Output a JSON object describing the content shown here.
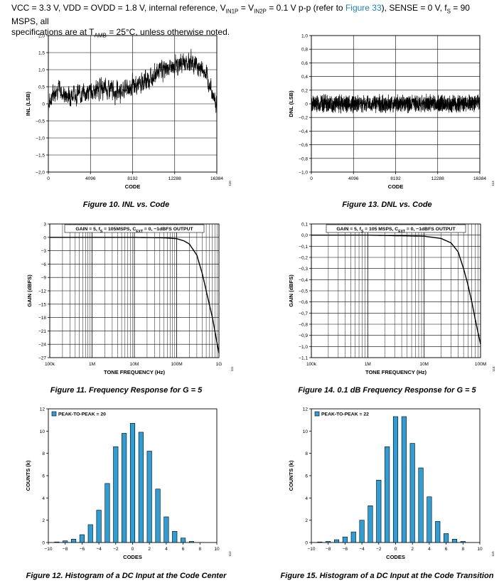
{
  "header": {
    "p1": "VCC = 3.3 V, VDD = OVDD = 1.8 V, internal reference, V",
    "sub1": "IN1P",
    "p2": " = V",
    "sub2": "IN2P",
    "p3": " = 0.1 V p-p (refer to ",
    "link": "Figure 33",
    "p4": "), SENSE = 0 V, f",
    "sub3": "S",
    "p5": " = 90 MSPS, all",
    "p6": "specifications are at T",
    "sub4": "AMB",
    "p7": " = 25°C, unless otherwise noted.",
    "accent_color": "#1f7fc2"
  },
  "captions": {
    "fig10": "Figure 10. INL vs. Code",
    "fig13": "Figure 13. DNL vs. Code",
    "fig11": "Figure 11. Frequency Response for G = 5",
    "fig14": "Figure 14. 0.1 dB Frequency Response for G = 5",
    "fig12": "Figure 12. Histogram of a DC Input at the Code Center",
    "fig15": "Figure 15. Histogram of a DC Input at the Code Transition"
  },
  "chart_data": [
    {
      "id": "inl",
      "type": "line",
      "xlabel": "CODE",
      "ylabel": "INL (LSB)",
      "xlim": [
        0,
        16384
      ],
      "ylim": [
        -2.0,
        2.0
      ],
      "xticks": [
        0,
        4096,
        8192,
        12288,
        16384
      ],
      "xtick_labels": [
        "0",
        "4096",
        "8192",
        "12288",
        "16384"
      ],
      "yticks": [
        -2.0,
        -1.5,
        -1.0,
        -0.5,
        0,
        0.5,
        1.0,
        1.5,
        2.0
      ],
      "ytick_labels": [
        "-2,0",
        "-1,5",
        "-1,0",
        "-0,5",
        "0",
        "0,5",
        "1,0",
        "1,5",
        "2,0"
      ],
      "trend_x": [
        0,
        800,
        1600,
        2400,
        3200,
        4096,
        5000,
        6000,
        7000,
        8192,
        9000,
        10000,
        11000,
        12288,
        13000,
        14000,
        15000,
        15600,
        16384
      ],
      "trend_y": [
        0.0,
        0.5,
        0.25,
        0.3,
        0.3,
        0.35,
        0.45,
        0.4,
        0.4,
        0.5,
        0.6,
        0.8,
        1.0,
        1.1,
        1.2,
        1.25,
        1.0,
        0.6,
        0.0
      ],
      "grid": true,
      "side_code": "110"
    },
    {
      "id": "dnl",
      "type": "line",
      "xlabel": "CODE",
      "ylabel": "DNL (LSB)",
      "xlim": [
        0,
        16384
      ],
      "ylim": [
        -1.0,
        1.0
      ],
      "xticks": [
        0,
        4096,
        8192,
        12288,
        16384
      ],
      "xtick_labels": [
        "0",
        "4096",
        "8192",
        "12288",
        "16384"
      ],
      "yticks": [
        -1.0,
        -0.8,
        -0.6,
        -0.4,
        -0.2,
        0,
        0.2,
        0.4,
        0.6,
        0.8,
        1.0
      ],
      "ytick_labels": [
        "-1,0",
        "-0,8",
        "-0,6",
        "-0,4",
        "-0,2",
        "0",
        "0,2",
        "0,4",
        "0,6",
        "0,8",
        "1,0"
      ],
      "noise_amplitude": 0.15,
      "grid": true,
      "side_code": "113"
    },
    {
      "id": "freq",
      "type": "line",
      "title": "GAIN = 5, f",
      "title_sub": "S",
      "title_mid": " = 105MSPS, C",
      "title_sub2": "EXT",
      "title_end": " = 0, -1dBFS OUTPUT",
      "xlabel": "TONE FREQUENCY (Hz)",
      "ylabel": "GAIN (dBFS)",
      "xscale": "log",
      "xlim": [
        100000,
        1000000000
      ],
      "ylim": [
        -27,
        3
      ],
      "xtick_labels": [
        "100k",
        "1M",
        "10M",
        "100M",
        "1G"
      ],
      "yticks": [
        3,
        0,
        -3,
        -6,
        -9,
        -12,
        -15,
        -18,
        -21,
        -24,
        -27
      ],
      "ytick_labels": [
        "3",
        "0",
        "-3",
        "-6",
        "-9",
        "-12",
        "-15",
        "-18",
        "-21",
        "-24",
        "-27"
      ],
      "x": [
        100000,
        1000000,
        10000000,
        50000000,
        100000000,
        150000000,
        200000000,
        300000000,
        400000000,
        500000000,
        700000000,
        1000000000
      ],
      "y": [
        0,
        0,
        0,
        -0.1,
        -0.3,
        -0.8,
        -1.5,
        -4,
        -8,
        -12,
        -18,
        -26
      ],
      "grid": true,
      "side_code": "111"
    },
    {
      "id": "freq01",
      "type": "line",
      "title": "GAIN = 5, f",
      "title_sub": "S",
      "title_mid": " = 105 MSPS, C",
      "title_sub2": "EXT",
      "title_end": " = 0, -1dBFS OUTPUT",
      "xlabel": "TONE FREQUENCY (Hz)",
      "ylabel": "GAIN (dBFS)",
      "xscale": "log",
      "xlim": [
        100000,
        100000000
      ],
      "ylim": [
        -1.1,
        0.1
      ],
      "xtick_labels": [
        "100k",
        "1M",
        "10M",
        "100M"
      ],
      "yticks": [
        0.1,
        0,
        -0.1,
        -0.2,
        -0.3,
        -0.4,
        -0.5,
        -0.6,
        -0.7,
        -0.8,
        -0.9,
        -1.0,
        -1.1
      ],
      "ytick_labels": [
        "0,1",
        "0,0",
        "-0,1",
        "-0,2",
        "-0,3",
        "-0,4",
        "-0,5",
        "-0,6",
        "-0,7",
        "-0,8",
        "-0,9",
        "-1,0",
        "-1,1"
      ],
      "x": [
        100000,
        1000000,
        10000000,
        20000000,
        30000000,
        40000000,
        50000000,
        60000000,
        70000000,
        80000000,
        100000000
      ],
      "y": [
        0,
        0,
        -0.01,
        -0.03,
        -0.07,
        -0.15,
        -0.3,
        -0.45,
        -0.6,
        -0.75,
        -0.98
      ],
      "grid": true,
      "side_code": "114"
    },
    {
      "id": "hist1",
      "type": "bar",
      "legend": "PEAK-TO-PEAK = 20",
      "legend_position": "top-left",
      "xlabel": "CODES",
      "ylabel": "COUNTS (k)",
      "xlim": [
        -10,
        10
      ],
      "ylim": [
        0,
        12
      ],
      "xticks": [
        -10,
        -8,
        -6,
        -4,
        -2,
        0,
        2,
        4,
        6,
        8,
        10
      ],
      "xtick_labels": [
        "-10",
        "-8",
        "-6",
        "-4",
        "-2",
        "0",
        "2",
        "4",
        "6",
        "8",
        "10"
      ],
      "yticks": [
        0,
        2,
        4,
        6,
        8,
        10,
        12
      ],
      "ytick_labels": [
        "0",
        "2",
        "4",
        "6",
        "8",
        "10",
        "12"
      ],
      "x": [
        -9,
        -8,
        -7,
        -6,
        -5,
        -4,
        -3,
        -2,
        -1,
        0,
        1,
        2,
        3,
        4,
        5,
        6,
        7
      ],
      "values": [
        0.05,
        0.15,
        0.3,
        0.7,
        1.6,
        2.9,
        5.3,
        8.6,
        9.8,
        10.7,
        9.9,
        8.2,
        4.8,
        2.3,
        1.0,
        0.4,
        0.1
      ],
      "bar_color": "#2e9ed6",
      "side_code": "112"
    },
    {
      "id": "hist2",
      "type": "bar",
      "legend": "PEAK-TO-PEAK = 22",
      "legend_position": "top-left",
      "xlabel": "CODES",
      "ylabel": "COUNTS (k)",
      "xlim": [
        -10,
        10
      ],
      "ylim": [
        0,
        12
      ],
      "xticks": [
        -10,
        -8,
        -6,
        -4,
        -2,
        0,
        2,
        4,
        6,
        8,
        10
      ],
      "xtick_labels": [
        "-10",
        "-8",
        "-6",
        "-4",
        "-2",
        "0",
        "2",
        "4",
        "6",
        "8",
        "10"
      ],
      "yticks": [
        0,
        2,
        4,
        6,
        8,
        10,
        12
      ],
      "ytick_labels": [
        "0",
        "2",
        "4",
        "6",
        "8",
        "10",
        "12"
      ],
      "x": [
        -9,
        -8,
        -7,
        -6,
        -5,
        -4,
        -3,
        -2,
        -1,
        0,
        1,
        2,
        3,
        4,
        5,
        6,
        7,
        8
      ],
      "values": [
        0.05,
        0.1,
        0.25,
        0.5,
        0.95,
        2.0,
        3.3,
        5.6,
        8.6,
        11.3,
        11.3,
        8.9,
        6.7,
        4.1,
        1.9,
        0.8,
        0.3,
        0.1
      ],
      "bar_color": "#2e9ed6",
      "side_code": "115"
    }
  ]
}
